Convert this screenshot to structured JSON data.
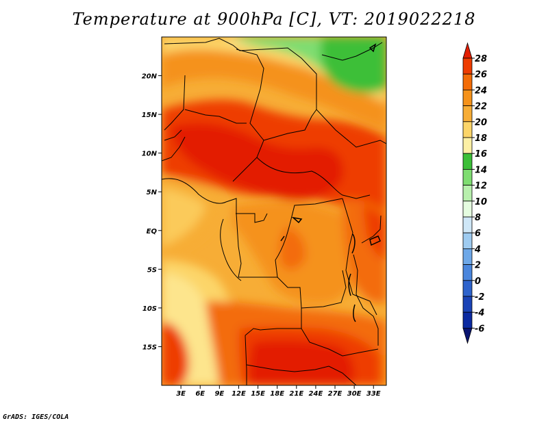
{
  "title": "Temperature at 900hPa [C], VT: 2019022218",
  "credit": "GrADS: IGES/COLA",
  "map": {
    "variable": "Temperature at 900hPa",
    "units": "C",
    "valid_time": "2019022218",
    "lon_ticks": [
      "3E",
      "6E",
      "9E",
      "12E",
      "15E",
      "18E",
      "21E",
      "24E",
      "27E",
      "30E",
      "33E"
    ],
    "lon_values": [
      3,
      6,
      9,
      12,
      15,
      18,
      21,
      24,
      27,
      30,
      33
    ],
    "lat_ticks": [
      "20N",
      "15N",
      "10N",
      "5N",
      "EQ",
      "5S",
      "10S",
      "15S"
    ],
    "lat_values": [
      20,
      15,
      10,
      5,
      0,
      -5,
      -10,
      -15
    ],
    "lon_range": [
      0,
      35
    ],
    "lat_range": [
      -20,
      25
    ]
  },
  "colorbar": {
    "labels": [
      "28",
      "26",
      "24",
      "22",
      "20",
      "18",
      "16",
      "14",
      "12",
      "10",
      "8",
      "6",
      "4",
      "2",
      "0",
      "-2",
      "-4",
      "-6"
    ],
    "colors": [
      "#e31e00",
      "#ee3c00",
      "#f36c07",
      "#f5921a",
      "#f7ad36",
      "#fcd569",
      "#fdf0a5",
      "#3cbf38",
      "#7fdd71",
      "#b8f0ad",
      "#e5fde0",
      "#cfe7f7",
      "#9ecbf0",
      "#6ea8e8",
      "#4a86dd",
      "#2e63cc",
      "#1a43b6",
      "#0b2aa1",
      "#091470"
    ]
  }
}
